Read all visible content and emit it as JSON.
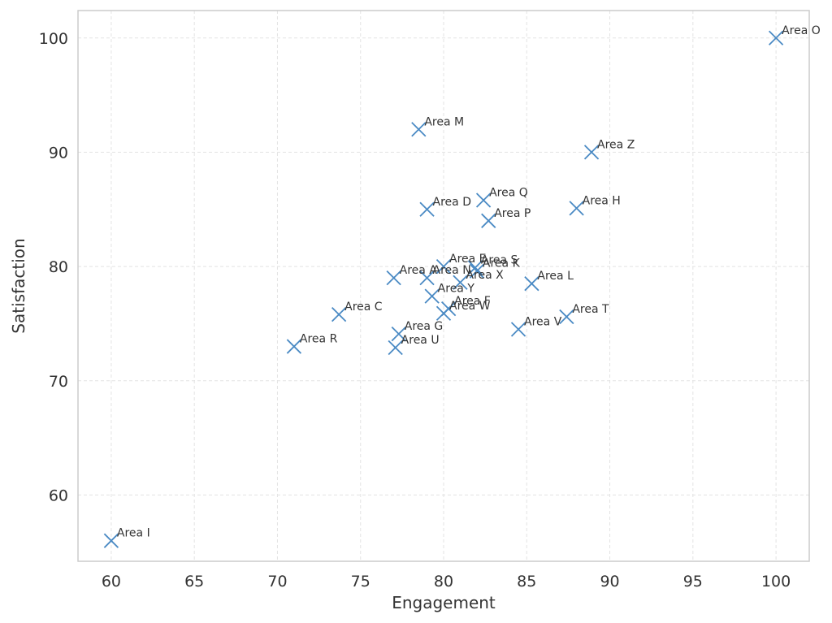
{
  "chart_data": {
    "type": "scatter",
    "title": "",
    "xlabel": "Engagement",
    "ylabel": "Satisfaction",
    "xlim": [
      58,
      102
    ],
    "ylim": [
      54.2,
      102.4
    ],
    "xticks": [
      60,
      65,
      70,
      75,
      80,
      85,
      90,
      95,
      100
    ],
    "yticks": [
      60,
      70,
      80,
      90,
      100
    ],
    "grid": true,
    "marker": "x",
    "color": "#4a8ac4",
    "points": [
      {
        "label": "Area O",
        "x": 100.0,
        "y": 100.0
      },
      {
        "label": "Area M",
        "x": 78.5,
        "y": 92.0
      },
      {
        "label": "Area Z",
        "x": 88.9,
        "y": 90.0
      },
      {
        "label": "Area Q",
        "x": 82.4,
        "y": 85.8
      },
      {
        "label": "Area D",
        "x": 79.0,
        "y": 85.0
      },
      {
        "label": "Area H",
        "x": 88.0,
        "y": 85.1
      },
      {
        "label": "Area P",
        "x": 82.7,
        "y": 84.0
      },
      {
        "label": "Area E",
        "x": 80.0,
        "y": 80.0
      },
      {
        "label": "Area S",
        "x": 81.9,
        "y": 79.9
      },
      {
        "label": "Area K",
        "x": 82.0,
        "y": 79.6
      },
      {
        "label": "Area A",
        "x": 77.0,
        "y": 79.0
      },
      {
        "label": "Area N",
        "x": 79.0,
        "y": 79.0
      },
      {
        "label": "Area X",
        "x": 81.0,
        "y": 78.6
      },
      {
        "label": "Area L",
        "x": 85.3,
        "y": 78.5
      },
      {
        "label": "Area Y",
        "x": 79.3,
        "y": 77.4
      },
      {
        "label": "Area F",
        "x": 80.3,
        "y": 76.3
      },
      {
        "label": "Area W",
        "x": 80.0,
        "y": 75.9
      },
      {
        "label": "Area C",
        "x": 73.7,
        "y": 75.8
      },
      {
        "label": "Area T",
        "x": 87.4,
        "y": 75.6
      },
      {
        "label": "Area V",
        "x": 84.5,
        "y": 74.5
      },
      {
        "label": "Area G",
        "x": 77.3,
        "y": 74.1
      },
      {
        "label": "Area R",
        "x": 71.0,
        "y": 73.0
      },
      {
        "label": "Area U",
        "x": 77.1,
        "y": 72.9
      },
      {
        "label": "Area I",
        "x": 60.0,
        "y": 56.0
      }
    ]
  }
}
